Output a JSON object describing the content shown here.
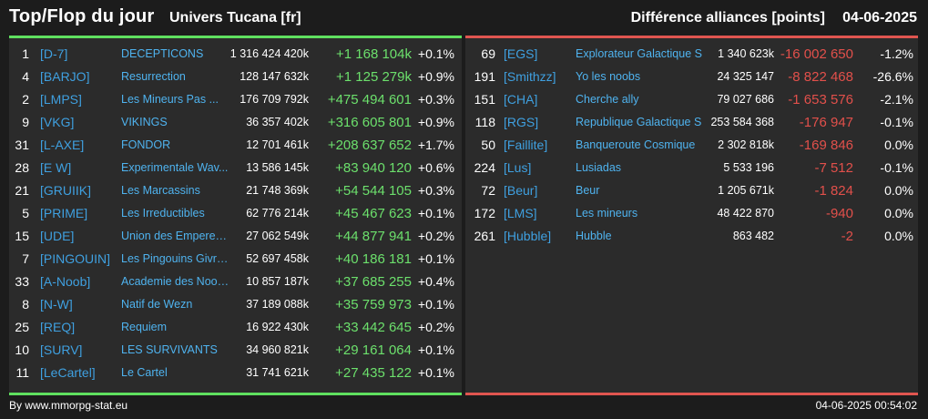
{
  "header": {
    "title": "Top/Flop du jour",
    "universe": "Univers Tucana [fr]",
    "diff_label": "Différence alliances [points]",
    "date": "04-06-2025"
  },
  "top": [
    {
      "rank": "1",
      "tag": "[D-7]",
      "name": "DECEPTICONS",
      "points": "1 316 424 420k",
      "change": "+1 168 104k",
      "pct": "+0.1%"
    },
    {
      "rank": "4",
      "tag": "[BARJO]",
      "name": "Resurrection",
      "points": "128 147 632k",
      "change": "+1 125 279k",
      "pct": "+0.9%"
    },
    {
      "rank": "2",
      "tag": "[LMPS]",
      "name": "Les Mineurs Pas ...",
      "points": "176 709 792k",
      "change": "+475 494 601",
      "pct": "+0.3%"
    },
    {
      "rank": "9",
      "tag": "[VKG]",
      "name": "VIKINGS",
      "points": "36 357 402k",
      "change": "+316 605 801",
      "pct": "+0.9%"
    },
    {
      "rank": "31",
      "tag": "[L-AXE]",
      "name": "FONDOR",
      "points": "12 701 461k",
      "change": "+208 637 652",
      "pct": "+1.7%"
    },
    {
      "rank": "28",
      "tag": "[E W]",
      "name": "Experimentale Wav...",
      "points": "13 586 145k",
      "change": "+83 940 120",
      "pct": "+0.6%"
    },
    {
      "rank": "21",
      "tag": "[GRUIIK]",
      "name": "Les Marcassins",
      "points": "21 748 369k",
      "change": "+54 544 105",
      "pct": "+0.3%"
    },
    {
      "rank": "5",
      "tag": "[PRIME]",
      "name": "Les Irreductibles",
      "points": "62 776 214k",
      "change": "+45 467 623",
      "pct": "+0.1%"
    },
    {
      "rank": "15",
      "tag": "[UDE]",
      "name": "Union des Empereur...",
      "points": "27 062 549k",
      "change": "+44 877 941",
      "pct": "+0.2%"
    },
    {
      "rank": "7",
      "tag": "[PINGOUIN]",
      "name": "Les Pingouins Givre...",
      "points": "52 697 458k",
      "change": "+40 186 181",
      "pct": "+0.1%"
    },
    {
      "rank": "33",
      "tag": "[A-Noob]",
      "name": "Academie des Noob...",
      "points": "10 857 187k",
      "change": "+37 685 255",
      "pct": "+0.4%"
    },
    {
      "rank": "8",
      "tag": "[N-W]",
      "name": "Natif de Wezn",
      "points": "37 189 088k",
      "change": "+35 759 973",
      "pct": "+0.1%"
    },
    {
      "rank": "25",
      "tag": "[REQ]",
      "name": "Requiem",
      "points": "16 922 430k",
      "change": "+33 442 645",
      "pct": "+0.2%"
    },
    {
      "rank": "10",
      "tag": "[SURV]",
      "name": "LES SURVIVANTS",
      "points": "34 960 821k",
      "change": "+29 161 064",
      "pct": "+0.1%"
    },
    {
      "rank": "11",
      "tag": "[LeCartel]",
      "name": "Le Cartel",
      "points": "31 741 621k",
      "change": "+27 435 122",
      "pct": "+0.1%"
    }
  ],
  "flop": [
    {
      "rank": "69",
      "tag": "[EGS]",
      "name": "Explorateur Galactique S",
      "points": "1 340 623k",
      "change": "-16 002 650",
      "pct": "-1.2%"
    },
    {
      "rank": "191",
      "tag": "[Smithzz]",
      "name": "Yo les noobs",
      "points": "24 325 147",
      "change": "-8 822 468",
      "pct": "-26.6%"
    },
    {
      "rank": "151",
      "tag": "[CHA]",
      "name": "Cherche ally",
      "points": "79 027 686",
      "change": "-1 653 576",
      "pct": "-2.1%"
    },
    {
      "rank": "118",
      "tag": "[RGS]",
      "name": "Republique Galactique S",
      "points": "253 584 368",
      "change": "-176 947",
      "pct": "-0.1%"
    },
    {
      "rank": "50",
      "tag": "[Faillite]",
      "name": "Banqueroute Cosmique",
      "points": "2 302 818k",
      "change": "-169 846",
      "pct": "0.0%"
    },
    {
      "rank": "224",
      "tag": "[Lus]",
      "name": "Lusiadas",
      "points": "5 533 196",
      "change": "-7 512",
      "pct": "-0.1%"
    },
    {
      "rank": "72",
      "tag": "[Beur]",
      "name": "Beur",
      "points": "1 205 671k",
      "change": "-1 824",
      "pct": "0.0%"
    },
    {
      "rank": "172",
      "tag": "[LMS]",
      "name": "Les mineurs",
      "points": "48 422 870",
      "change": "-940",
      "pct": "0.0%"
    },
    {
      "rank": "261",
      "tag": "[Hubble]",
      "name": "Hubble",
      "points": "863 482",
      "change": "-2",
      "pct": "0.0%"
    }
  ],
  "footer": {
    "credit": "By www.mmorpg-stat.eu",
    "timestamp": "04-06-2025 00:54:02"
  },
  "colors": {
    "top_accent": "#5fe05f",
    "flop_accent": "#e05550",
    "link": "#4fb3ef"
  }
}
